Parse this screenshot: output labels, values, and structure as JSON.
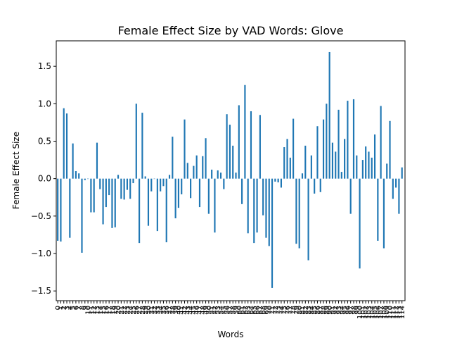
{
  "chart_data": {
    "type": "bar",
    "title": "Female Effect Size by VAD Words: Glove",
    "xlabel": "Words",
    "ylabel": "Female Effect Size",
    "ylim": [
      -1.63,
      1.84
    ],
    "yticks": [
      -1.5,
      -1.0,
      -0.5,
      0.0,
      0.5,
      1.0,
      1.5
    ],
    "ytick_labels": [
      "−1.5",
      "−1.0",
      "−0.5",
      "0.0",
      "0.5",
      "1.0",
      "1.5"
    ],
    "bar_color": "#1f77b4",
    "grid": false,
    "categories": [
      "0",
      "1",
      "2",
      "3",
      "4",
      "5",
      "6",
      "7",
      "8",
      "9",
      "10",
      "11",
      "12",
      "13",
      "14",
      "15",
      "16",
      "17",
      "18",
      "19",
      "20",
      "21",
      "22",
      "23",
      "24",
      "25",
      "26",
      "27",
      "28",
      "29",
      "30",
      "31",
      "32",
      "33",
      "34",
      "35",
      "36",
      "37",
      "38",
      "39",
      "40",
      "41",
      "42",
      "43",
      "44",
      "45",
      "46",
      "47",
      "48",
      "49",
      "50",
      "51",
      "52",
      "53",
      "54",
      "55",
      "56",
      "57",
      "58",
      "59",
      "60",
      "61",
      "62",
      "63",
      "64",
      "65",
      "66",
      "67",
      "68",
      "69",
      "70",
      "71",
      "72",
      "73",
      "74",
      "75",
      "76",
      "77",
      "78",
      "79",
      "80",
      "81",
      "82",
      "83",
      "84",
      "85",
      "86",
      "87",
      "88",
      "89",
      "90",
      "91",
      "92",
      "93",
      "94",
      "95",
      "96",
      "97",
      "98",
      "99",
      "100",
      "101",
      "102",
      "103",
      "104",
      "105",
      "106",
      "107",
      "108",
      "109",
      "110",
      "111",
      "112",
      "113",
      "114"
    ],
    "values": [
      -0.83,
      -0.84,
      0.94,
      0.87,
      -0.79,
      0.47,
      0.1,
      0.07,
      -0.99,
      -0.02,
      0.0,
      -0.45,
      -0.45,
      0.48,
      -0.14,
      -0.61,
      -0.38,
      -0.22,
      -0.66,
      -0.65,
      0.05,
      -0.27,
      -0.28,
      -0.15,
      -0.27,
      -0.06,
      1.0,
      -0.86,
      0.88,
      0.03,
      -0.63,
      -0.17,
      0.0,
      -0.7,
      -0.17,
      -0.1,
      -0.85,
      0.05,
      0.56,
      -0.53,
      -0.39,
      -0.21,
      0.79,
      0.21,
      -0.26,
      0.17,
      0.31,
      -0.38,
      0.3,
      0.54,
      -0.47,
      0.12,
      -0.72,
      0.11,
      0.08,
      -0.14,
      0.86,
      0.72,
      0.44,
      0.08,
      0.98,
      -0.34,
      1.25,
      -0.73,
      0.9,
      -0.86,
      -0.72,
      0.85,
      -0.49,
      -0.79,
      -0.9,
      -1.46,
      -0.04,
      -0.05,
      -0.12,
      0.42,
      0.53,
      0.28,
      0.8,
      -0.87,
      -0.93,
      0.07,
      0.44,
      -1.09,
      0.31,
      -0.2,
      0.7,
      -0.18,
      0.79,
      1.0,
      1.69,
      0.48,
      0.36,
      0.92,
      0.09,
      0.53,
      1.04,
      -0.47,
      1.06,
      0.31,
      -1.2,
      0.25,
      0.43,
      0.36,
      0.28,
      0.59,
      -0.83,
      0.97,
      -0.93,
      0.2,
      0.77,
      -0.27,
      -0.12,
      -0.47,
      0.15
    ]
  }
}
